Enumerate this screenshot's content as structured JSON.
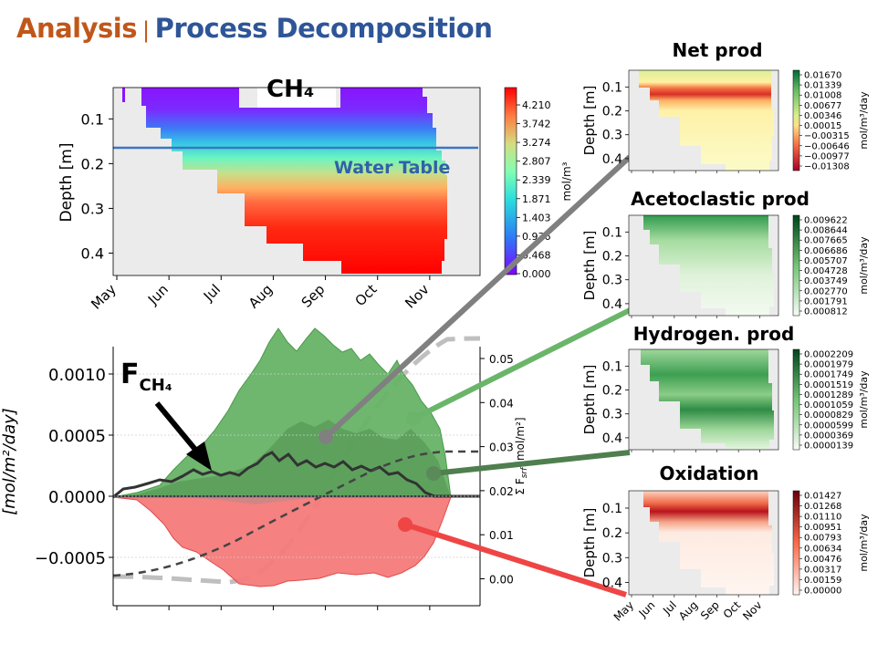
{
  "slide_title": {
    "part1": "Analysis",
    "separator": "|",
    "part2": "Process Decomposition"
  },
  "colors": {
    "title_orange": "#c0571a",
    "title_blue": "#2e5597",
    "green": "#4a9a4a",
    "red": "#e24a4a",
    "gray_line": "#808080"
  },
  "months": [
    "May",
    "Jun",
    "Jul",
    "Aug",
    "Sep",
    "Oct",
    "Nov"
  ],
  "chart_data": [
    {
      "type": "heatmap",
      "id": "ch4",
      "title": "CH₄",
      "ylabel": "Depth [m]",
      "yticks": [
        "0.1",
        "0.2",
        "0.3",
        "0.4"
      ],
      "ylim": [
        0.03,
        0.45
      ],
      "colorbar_label": "mol/m³",
      "colorbar_ticks": [
        "4.210",
        "3.742",
        "3.274",
        "2.807",
        "2.339",
        "1.871",
        "1.403",
        "0.936",
        "0.468",
        "0.000"
      ],
      "annotation": "Water Table",
      "water_table_depth": 0.165
    },
    {
      "type": "area",
      "id": "flux",
      "label_main": "F",
      "label_sub": "CH₄",
      "ylabel": "[mol/m²/day]",
      "yticks": [
        "0.0010",
        "0.0005",
        "0.0000",
        "−0.0005"
      ],
      "y2label": "Σ F",
      "y2label_sub": "srf",
      "y2label_unit": "[mol/m²]",
      "y2ticks": [
        "0.05",
        "0.04",
        "0.03",
        "0.02",
        "0.01",
        "0.00"
      ],
      "series": [
        {
          "name": "Acetoclastic prod",
          "color": "#4a9a4a"
        },
        {
          "name": "Hydrogen. prod",
          "color": "#4a9a4a"
        },
        {
          "name": "Oxidation",
          "color": "#e24a4a"
        }
      ]
    },
    {
      "type": "heatmap",
      "id": "net",
      "title": "Net prod",
      "ylabel": "Depth [m]",
      "yticks": [
        "0.1",
        "0.2",
        "0.3",
        "0.4"
      ],
      "colorbar_label": "mol/m³/day",
      "colorbar_ticks": [
        "0.01670",
        "0.01339",
        "0.01008",
        "0.00677",
        "0.00346",
        "0.00015",
        "−0.00315",
        "−0.00646",
        "−0.00977",
        "−0.01308"
      ]
    },
    {
      "type": "heatmap",
      "id": "aceto",
      "title": "Acetoclastic prod",
      "ylabel": "Depth [m]",
      "yticks": [
        "0.1",
        "0.2",
        "0.3",
        "0.4"
      ],
      "colorbar_label": "mol/m³/day",
      "colorbar_ticks": [
        "0.009622",
        "0.008644",
        "0.007665",
        "0.006686",
        "0.005707",
        "0.004728",
        "0.003749",
        "0.002770",
        "0.001791",
        "0.000812"
      ]
    },
    {
      "type": "heatmap",
      "id": "hydro",
      "title": "Hydrogen. prod",
      "ylabel": "Depth [m]",
      "yticks": [
        "0.1",
        "0.2",
        "0.3",
        "0.4"
      ],
      "colorbar_label": "mol/m³/day",
      "colorbar_ticks": [
        "0.0002209",
        "0.0001979",
        "0.0001749",
        "0.0001519",
        "0.0001289",
        "0.0001059",
        "0.0000829",
        "0.0000599",
        "0.0000369",
        "0.0000139"
      ]
    },
    {
      "type": "heatmap",
      "id": "oxid",
      "title": "Oxidation",
      "ylabel": "Depth [m]",
      "yticks": [
        "0.1",
        "0.2",
        "0.3",
        "0.4"
      ],
      "colorbar_label": "mol/m³/day",
      "colorbar_ticks": [
        "0.01427",
        "0.01268",
        "0.01110",
        "0.00951",
        "0.00793",
        "0.00634",
        "0.00476",
        "0.00317",
        "0.00159",
        "0.00000"
      ]
    }
  ]
}
